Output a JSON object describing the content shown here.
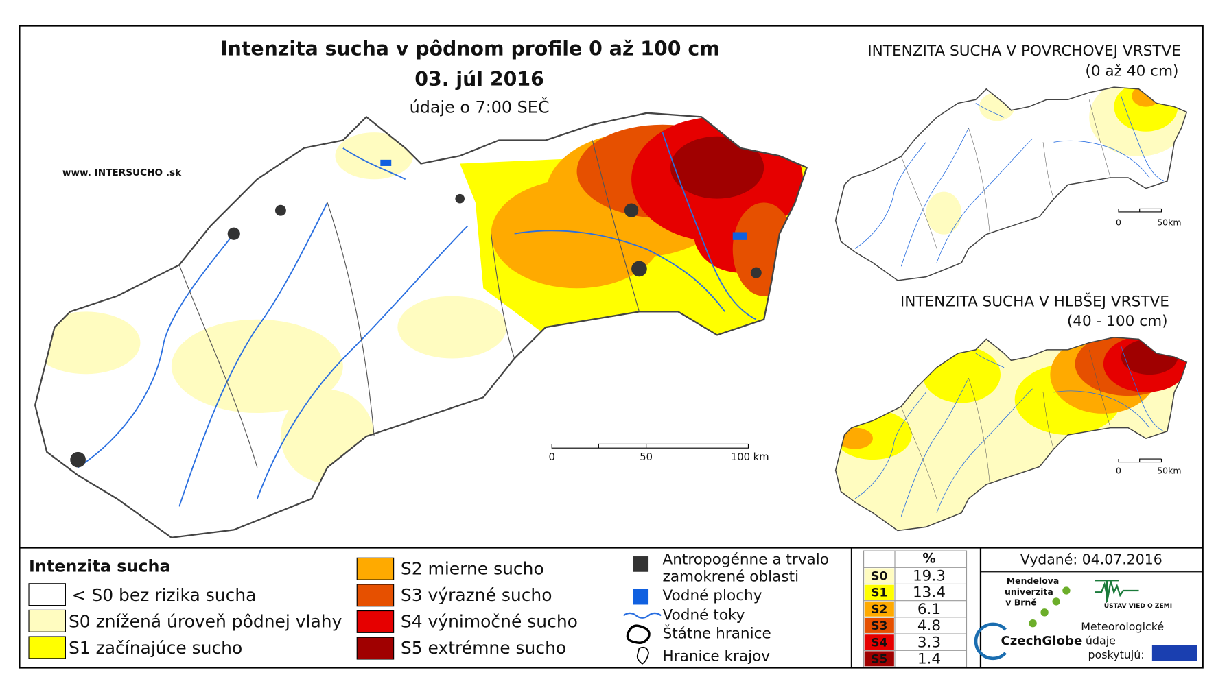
{
  "header": {
    "title": "Intenzita sucha v pôdnom profile 0 až 100 cm",
    "date": "03. júl 2016",
    "subtitle": "údaje o 7:00 SEČ",
    "website": "www. INTERSUCHO .sk"
  },
  "main_scale": {
    "labels": [
      "0",
      "50",
      "100 km"
    ]
  },
  "insets": [
    {
      "title": "INTENZITA SUCHA V POVRCHOVEJ VRSTVE",
      "subtitle": "(0 až 40 cm)",
      "scale_labels": [
        "0",
        "50km"
      ]
    },
    {
      "title": "INTENZITA SUCHA V HLBŠEJ VRSTVE",
      "subtitle": "(40 - 100 cm)",
      "scale_labels": [
        "0",
        "50km"
      ]
    }
  ],
  "legend": {
    "title": "Intenzita sucha",
    "items": [
      {
        "label": "< S0 bez rizika sucha",
        "color": "#ffffff"
      },
      {
        "label": "S0 znížená úroveň pôdnej vlahy",
        "color": "#fffcc0"
      },
      {
        "label": "S1 začínajúce sucho",
        "color": "#ffff00"
      },
      {
        "label": "S2 mierne sucho",
        "color": "#ffaa00"
      },
      {
        "label": "S3 výrazné sucho",
        "color": "#e65000"
      },
      {
        "label": "S4 výnimočné sucho",
        "color": "#e60000"
      },
      {
        "label": "S5 extrémne sucho",
        "color": "#a00000"
      }
    ]
  },
  "features": {
    "items": [
      {
        "lines": [
          "Antropogénne a trvalo",
          "zamokrené oblasti"
        ]
      },
      {
        "lines": [
          "Vodné plochy"
        ]
      },
      {
        "lines": [
          "Vodné toky"
        ]
      },
      {
        "lines": [
          "Štátne hranice"
        ]
      },
      {
        "lines": [
          "Hranice krajov"
        ]
      }
    ]
  },
  "table": {
    "header": "%",
    "rows": [
      [
        "S0",
        19.3
      ],
      [
        "S1",
        13.4
      ],
      [
        "S2",
        6.1
      ],
      [
        "S3",
        4.8
      ],
      [
        "S4",
        3.3
      ],
      [
        "S5",
        1.4
      ]
    ]
  },
  "issued": "Vydané: 04.07.2016",
  "logos": {
    "mendel": [
      "Mendelova",
      "univerzita",
      "v Brně"
    ],
    "czechglobe": "CzechGlobe",
    "ustav": "ÚSTAV VIED O ZEMI",
    "meteo": [
      "Meteorologické",
      "údaje",
      "poskytujú:"
    ]
  }
}
